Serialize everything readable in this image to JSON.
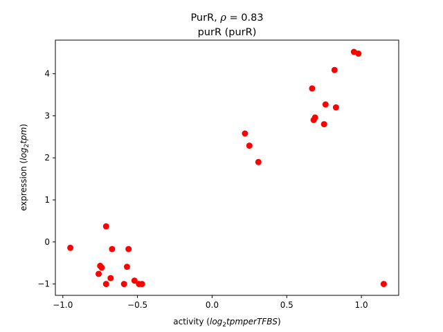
{
  "chart_data": {
    "type": "scatter",
    "title_line1_prefix": "PurR, ",
    "title_line1_rho": "ρ",
    "title_line1_suffix": " = 0.83",
    "title_line2": "purR (purR)",
    "xlabel_prefix": "activity (",
    "xlabel_math": "log",
    "xlabel_sub": "2",
    "xlabel_math_rest": "tpmperTFBS",
    "xlabel_suffix": ")",
    "ylabel_prefix": "expression (",
    "ylabel_math": "log",
    "ylabel_sub": "2",
    "ylabel_math_rest": "tpm",
    "ylabel_suffix": ")",
    "xlim": [
      -1.05,
      1.25
    ],
    "ylim": [
      -1.27,
      4.8
    ],
    "x_ticks": [
      -1.0,
      -0.5,
      0.0,
      0.5,
      1.0
    ],
    "x_tick_labels": [
      "−1.0",
      "−0.5",
      "0.0",
      "0.5",
      "1.0"
    ],
    "y_ticks": [
      -1,
      0,
      1,
      2,
      3,
      4
    ],
    "y_tick_labels": [
      "−1",
      "0",
      "1",
      "2",
      "3",
      "4"
    ],
    "grid": false,
    "marker_color": "#ff0000",
    "points": [
      {
        "x": -0.95,
        "y": -0.14
      },
      {
        "x": -0.75,
        "y": -0.57
      },
      {
        "x": -0.74,
        "y": -0.61
      },
      {
        "x": -0.76,
        "y": -0.76
      },
      {
        "x": -0.71,
        "y": 0.37
      },
      {
        "x": -0.71,
        "y": -1.0
      },
      {
        "x": -0.68,
        "y": -0.86
      },
      {
        "x": -0.67,
        "y": -0.17
      },
      {
        "x": -0.59,
        "y": -1.0
      },
      {
        "x": -0.57,
        "y": -0.59
      },
      {
        "x": -0.56,
        "y": -0.17
      },
      {
        "x": -0.52,
        "y": -0.92
      },
      {
        "x": -0.49,
        "y": -1.0
      },
      {
        "x": -0.47,
        "y": -1.0
      },
      {
        "x": 0.22,
        "y": 2.58
      },
      {
        "x": 0.25,
        "y": 2.29
      },
      {
        "x": 0.31,
        "y": 1.9
      },
      {
        "x": 0.67,
        "y": 3.65
      },
      {
        "x": 0.68,
        "y": 2.9
      },
      {
        "x": 0.69,
        "y": 2.96
      },
      {
        "x": 0.75,
        "y": 2.8
      },
      {
        "x": 0.76,
        "y": 3.27
      },
      {
        "x": 0.82,
        "y": 4.09
      },
      {
        "x": 0.83,
        "y": 3.2
      },
      {
        "x": 0.95,
        "y": 4.52
      },
      {
        "x": 0.98,
        "y": 4.48
      },
      {
        "x": 1.15,
        "y": -1.0
      }
    ]
  }
}
